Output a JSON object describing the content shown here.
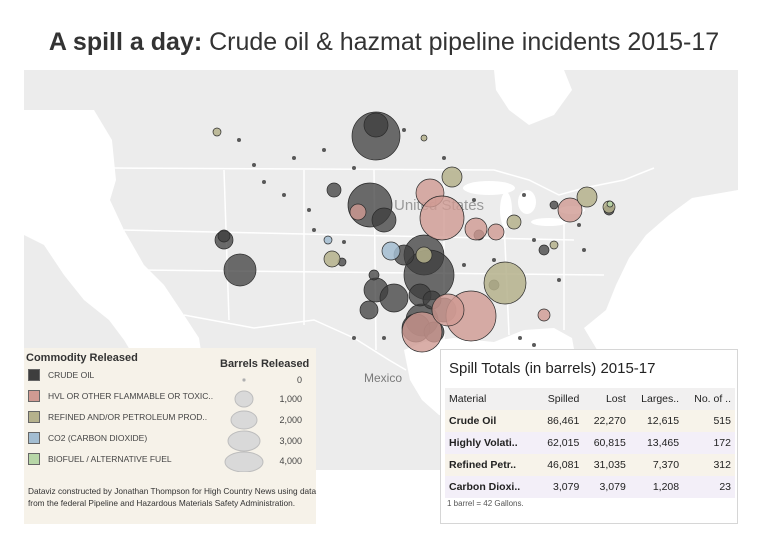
{
  "title": {
    "bold": "A spill a day:",
    "rest": " Crude oil & hazmat pipeline incidents 2015-17"
  },
  "map": {
    "labels": {
      "country_us": "United States",
      "country_mx": "Mexico"
    },
    "colors": {
      "land": "#ececec",
      "water": "#ffffff",
      "border": "#ffffff"
    }
  },
  "legend": {
    "commodity_title": "Commodity Released",
    "commodities": [
      {
        "label": "CRUDE OIL",
        "color": "#3e3e3e"
      },
      {
        "label": "HVL OR OTHER FLAMMABLE OR TOXIC..",
        "color": "#d09a92"
      },
      {
        "label": "REFINED AND/OR PETROLEUM PROD..",
        "color": "#b5b18c"
      },
      {
        "label": "CO2 (CARBON DIOXIDE)",
        "color": "#a3bdd1"
      },
      {
        "label": "BIOFUEL / ALTERNATIVE FUEL",
        "color": "#b7d6a7"
      }
    ],
    "size_title": "Barrels Released",
    "sizes": [
      "0",
      "1,000",
      "2,000",
      "3,000",
      "4,000"
    ],
    "credit": "Dataviz constructed by Jonathan Thompson for High Country News using data from the federal Pipeline and Hazardous Materials Safety Administration."
  },
  "table": {
    "title": "Spill Totals (in barrels) 2015-17",
    "columns": [
      "Material",
      "Spilled",
      "Lost",
      "Larges..",
      "No. of .."
    ],
    "rows": [
      [
        "Crude Oil",
        "86,461",
        "22,270",
        "12,615",
        "515"
      ],
      [
        "Highly Volati..",
        "62,015",
        "60,815",
        "13,465",
        "172"
      ],
      [
        "Refined Petr..",
        "46,081",
        "31,035",
        "7,370",
        "312"
      ],
      [
        "Carbon Dioxi..",
        "3,079",
        "3,079",
        "1,208",
        "23"
      ]
    ],
    "note": "1 barrel = 42 Gallons."
  }
}
